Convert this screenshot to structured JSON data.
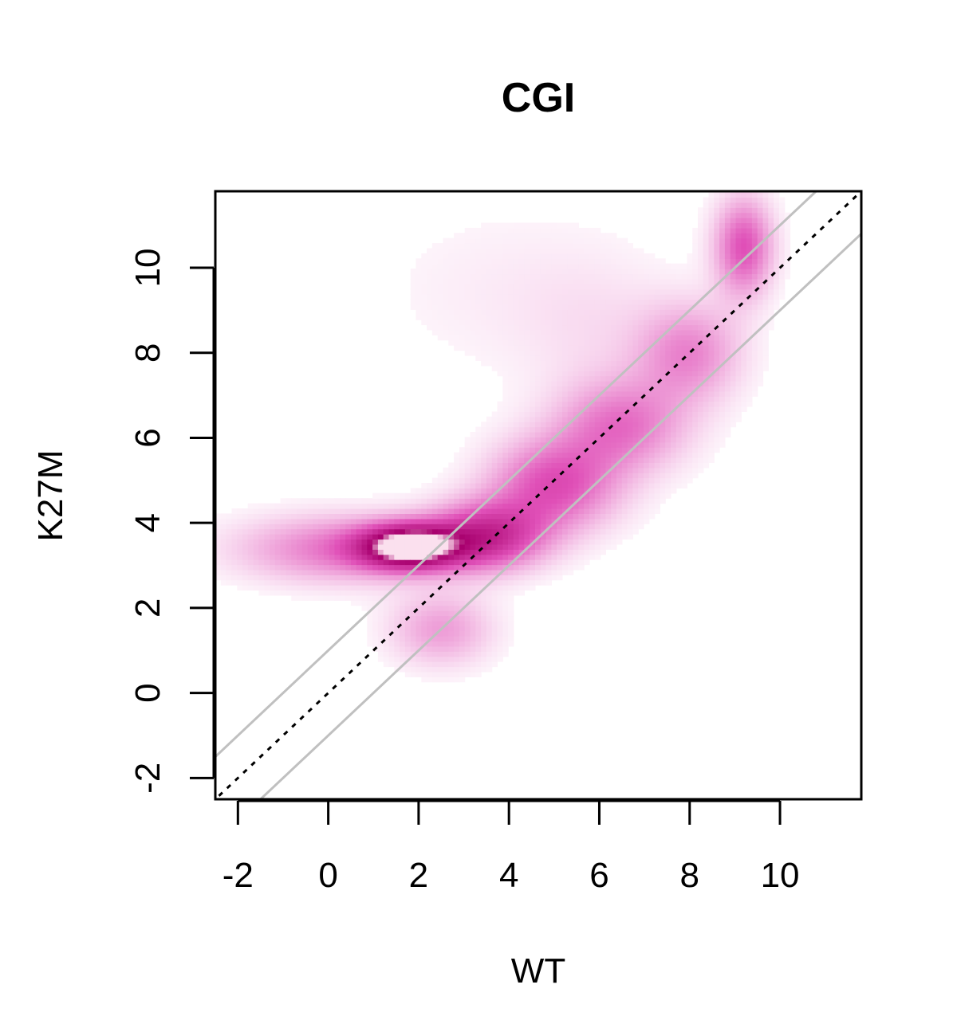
{
  "chart_data": {
    "type": "scatter",
    "subtype": "density-smoothscatter",
    "title": "CGI",
    "xlabel": "WT",
    "ylabel": "K27M",
    "xlim": [
      -2.5,
      11.8
    ],
    "ylim": [
      -2.5,
      11.8
    ],
    "xticks": [
      -2,
      0,
      2,
      4,
      6,
      8,
      10
    ],
    "yticks": [
      -2,
      0,
      2,
      4,
      6,
      8,
      10
    ],
    "grid": false,
    "colors": {
      "density_low": "#ffffff",
      "density_mid": "#e050b8",
      "density_high": "#a8006e",
      "peak_highlight": "#fbe0ee",
      "diagonal": "#000000",
      "fold_lines": "#c0c0c0"
    },
    "density_peak": {
      "x": 1.9,
      "y": 3.45
    },
    "density_clusters": [
      {
        "x": 1.8,
        "y": 3.45,
        "sx": 0.75,
        "sy": 0.35,
        "w": 1.0
      },
      {
        "x": 0.3,
        "y": 3.4,
        "sx": 1.6,
        "sy": 0.55,
        "w": 0.35
      },
      {
        "x": 3.5,
        "y": 3.7,
        "sx": 0.9,
        "sy": 0.55,
        "w": 0.6
      },
      {
        "x": 5.0,
        "y": 4.9,
        "sx": 1.0,
        "sy": 0.75,
        "w": 0.45
      },
      {
        "x": 6.5,
        "y": 6.3,
        "sx": 1.0,
        "sy": 0.75,
        "w": 0.35
      },
      {
        "x": 8.0,
        "y": 8.0,
        "sx": 0.8,
        "sy": 0.8,
        "w": 0.3
      },
      {
        "x": 9.2,
        "y": 10.5,
        "sx": 0.45,
        "sy": 0.8,
        "w": 0.45
      },
      {
        "x": 2.5,
        "y": 1.5,
        "sx": 0.8,
        "sy": 0.6,
        "w": 0.25
      },
      {
        "x": 4.0,
        "y": 9.5,
        "sx": 2.2,
        "sy": 1.5,
        "w": 0.05
      },
      {
        "x": 6.0,
        "y": 8.5,
        "sx": 1.2,
        "sy": 1.2,
        "w": 0.06
      }
    ],
    "reference_lines": [
      {
        "name": "y = x",
        "intercept": 0,
        "slope": 1,
        "style": "dotted"
      },
      {
        "name": "y = x + 1",
        "intercept": 1,
        "slope": 1,
        "style": "solid"
      },
      {
        "name": "y = x - 1",
        "intercept": -1,
        "slope": 1,
        "style": "solid"
      }
    ]
  }
}
